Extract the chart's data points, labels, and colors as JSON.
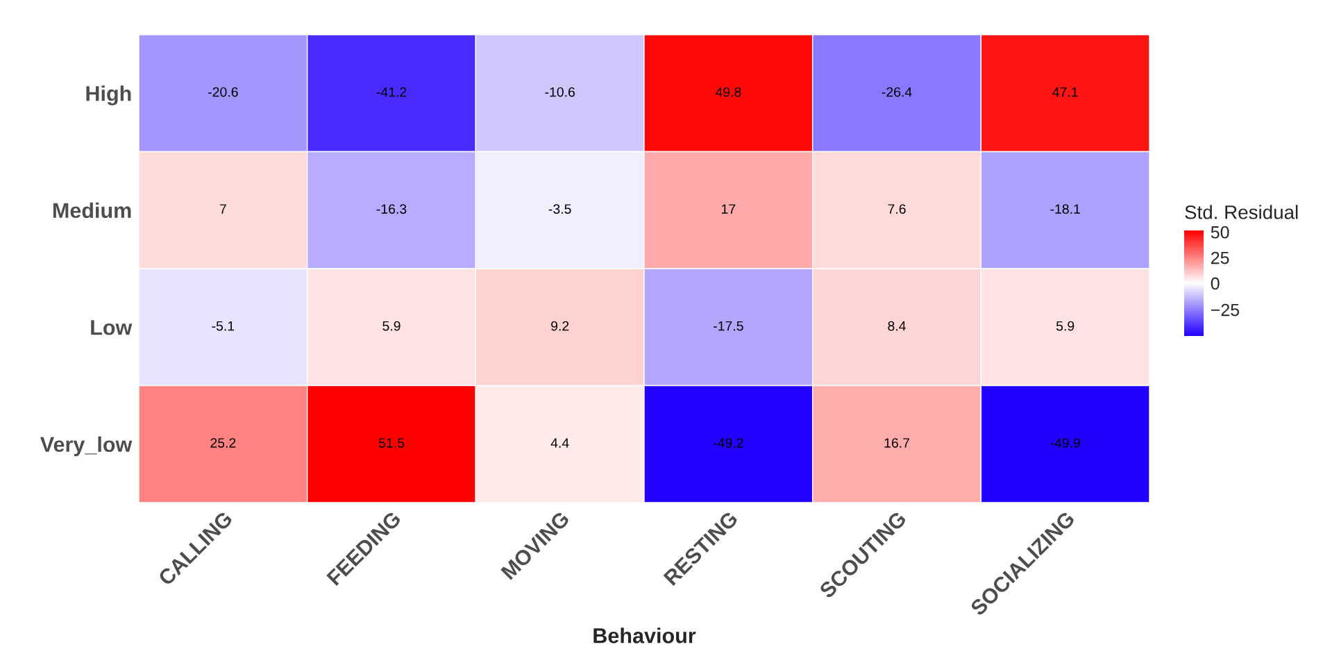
{
  "chart_data": {
    "type": "heatmap",
    "xlabel": "Behaviour",
    "clabel": "Std. Residual",
    "categories": [
      "CALLING",
      "FEEDING",
      "MOVING",
      "RESTING",
      "SCOUTING",
      "SOCIALIZING"
    ],
    "y_categories": [
      "High",
      "Medium",
      "Low",
      "Very_low"
    ],
    "cells": [
      [
        -20.6,
        -41.2,
        -10.6,
        49.8,
        -26.4,
        47.1
      ],
      [
        7,
        -16.3,
        -3.5,
        17,
        7.6,
        -18.1
      ],
      [
        -5.1,
        5.9,
        9.2,
        -17.5,
        8.4,
        5.9
      ],
      [
        25.2,
        51.5,
        4.4,
        -49.2,
        16.7,
        -49.9
      ]
    ],
    "data_labels": true,
    "colors": [
      "#2200ff",
      "#ffffff",
      "#ff0000"
    ],
    "clim": [
      -49.9,
      51.5
    ],
    "cticks": [
      -25,
      0,
      25,
      50
    ]
  }
}
